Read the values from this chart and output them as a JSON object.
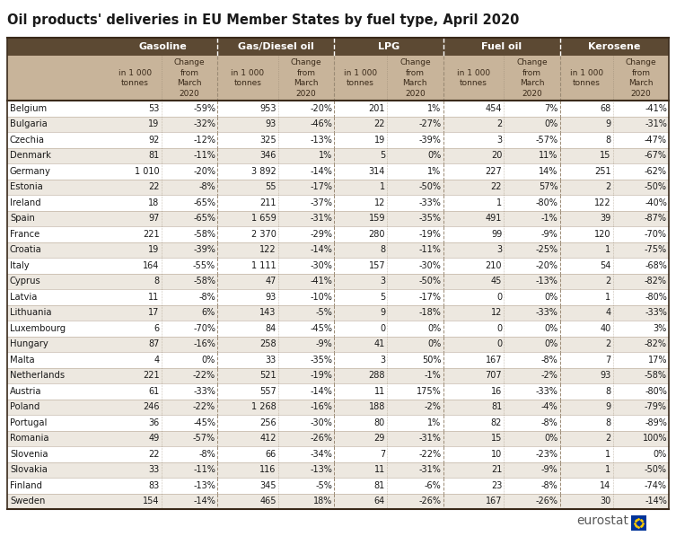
{
  "title": "Oil products' deliveries in EU Member States by fuel type, April 2020",
  "col_groups": [
    "Gasoline",
    "Gas/Diesel oil",
    "LPG",
    "Fuel oil",
    "Kerosene"
  ],
  "countries": [
    "Belgium",
    "Bulgaria",
    "Czechia",
    "Denmark",
    "Germany",
    "Estonia",
    "Ireland",
    "Spain",
    "France",
    "Croatia",
    "Italy",
    "Cyprus",
    "Latvia",
    "Lithuania",
    "Luxembourg",
    "Hungary",
    "Malta",
    "Netherlands",
    "Austria",
    "Poland",
    "Portugal",
    "Romania",
    "Slovenia",
    "Slovakia",
    "Finland",
    "Sweden"
  ],
  "data": {
    "Belgium": {
      "gas_v": "53",
      "gas_c": "-59%",
      "diesel_v": "953",
      "diesel_c": "-20%",
      "lpg_v": "201",
      "lpg_c": "1%",
      "fuel_v": "454",
      "fuel_c": "7%",
      "ker_v": "68",
      "ker_c": "-41%"
    },
    "Bulgaria": {
      "gas_v": "19",
      "gas_c": "-32%",
      "diesel_v": "93",
      "diesel_c": "-46%",
      "lpg_v": "22",
      "lpg_c": "-27%",
      "fuel_v": "2",
      "fuel_c": "0%",
      "ker_v": "9",
      "ker_c": "-31%"
    },
    "Czechia": {
      "gas_v": "92",
      "gas_c": "-12%",
      "diesel_v": "325",
      "diesel_c": "-13%",
      "lpg_v": "19",
      "lpg_c": "-39%",
      "fuel_v": "3",
      "fuel_c": "-57%",
      "ker_v": "8",
      "ker_c": "-47%"
    },
    "Denmark": {
      "gas_v": "81",
      "gas_c": "-11%",
      "diesel_v": "346",
      "diesel_c": "1%",
      "lpg_v": "5",
      "lpg_c": "0%",
      "fuel_v": "20",
      "fuel_c": "11%",
      "ker_v": "15",
      "ker_c": "-67%"
    },
    "Germany": {
      "gas_v": "1 010",
      "gas_c": "-20%",
      "diesel_v": "3 892",
      "diesel_c": "-14%",
      "lpg_v": "314",
      "lpg_c": "1%",
      "fuel_v": "227",
      "fuel_c": "14%",
      "ker_v": "251",
      "ker_c": "-62%"
    },
    "Estonia": {
      "gas_v": "22",
      "gas_c": "-8%",
      "diesel_v": "55",
      "diesel_c": "-17%",
      "lpg_v": "1",
      "lpg_c": "-50%",
      "fuel_v": "22",
      "fuel_c": "57%",
      "ker_v": "2",
      "ker_c": "-50%"
    },
    "Ireland": {
      "gas_v": "18",
      "gas_c": "-65%",
      "diesel_v": "211",
      "diesel_c": "-37%",
      "lpg_v": "12",
      "lpg_c": "-33%",
      "fuel_v": "1",
      "fuel_c": "-80%",
      "ker_v": "122",
      "ker_c": "-40%"
    },
    "Spain": {
      "gas_v": "97",
      "gas_c": "-65%",
      "diesel_v": "1 659",
      "diesel_c": "-31%",
      "lpg_v": "159",
      "lpg_c": "-35%",
      "fuel_v": "491",
      "fuel_c": "-1%",
      "ker_v": "39",
      "ker_c": "-87%"
    },
    "France": {
      "gas_v": "221",
      "gas_c": "-58%",
      "diesel_v": "2 370",
      "diesel_c": "-29%",
      "lpg_v": "280",
      "lpg_c": "-19%",
      "fuel_v": "99",
      "fuel_c": "-9%",
      "ker_v": "120",
      "ker_c": "-70%"
    },
    "Croatia": {
      "gas_v": "19",
      "gas_c": "-39%",
      "diesel_v": "122",
      "diesel_c": "-14%",
      "lpg_v": "8",
      "lpg_c": "-11%",
      "fuel_v": "3",
      "fuel_c": "-25%",
      "ker_v": "1",
      "ker_c": "-75%"
    },
    "Italy": {
      "gas_v": "164",
      "gas_c": "-55%",
      "diesel_v": "1 111",
      "diesel_c": "-30%",
      "lpg_v": "157",
      "lpg_c": "-30%",
      "fuel_v": "210",
      "fuel_c": "-20%",
      "ker_v": "54",
      "ker_c": "-68%"
    },
    "Cyprus": {
      "gas_v": "8",
      "gas_c": "-58%",
      "diesel_v": "47",
      "diesel_c": "-41%",
      "lpg_v": "3",
      "lpg_c": "-50%",
      "fuel_v": "45",
      "fuel_c": "-13%",
      "ker_v": "2",
      "ker_c": "-82%"
    },
    "Latvia": {
      "gas_v": "11",
      "gas_c": "-8%",
      "diesel_v": "93",
      "diesel_c": "-10%",
      "lpg_v": "5",
      "lpg_c": "-17%",
      "fuel_v": "0",
      "fuel_c": "0%",
      "ker_v": "1",
      "ker_c": "-80%"
    },
    "Lithuania": {
      "gas_v": "17",
      "gas_c": "6%",
      "diesel_v": "143",
      "diesel_c": "-5%",
      "lpg_v": "9",
      "lpg_c": "-18%",
      "fuel_v": "12",
      "fuel_c": "-33%",
      "ker_v": "4",
      "ker_c": "-33%"
    },
    "Luxembourg": {
      "gas_v": "6",
      "gas_c": "-70%",
      "diesel_v": "84",
      "diesel_c": "-45%",
      "lpg_v": "0",
      "lpg_c": "0%",
      "fuel_v": "0",
      "fuel_c": "0%",
      "ker_v": "40",
      "ker_c": "3%"
    },
    "Hungary": {
      "gas_v": "87",
      "gas_c": "-16%",
      "diesel_v": "258",
      "diesel_c": "-9%",
      "lpg_v": "41",
      "lpg_c": "0%",
      "fuel_v": "0",
      "fuel_c": "0%",
      "ker_v": "2",
      "ker_c": "-82%"
    },
    "Malta": {
      "gas_v": "4",
      "gas_c": "0%",
      "diesel_v": "33",
      "diesel_c": "-35%",
      "lpg_v": "3",
      "lpg_c": "50%",
      "fuel_v": "167",
      "fuel_c": "-8%",
      "ker_v": "7",
      "ker_c": "17%"
    },
    "Netherlands": {
      "gas_v": "221",
      "gas_c": "-22%",
      "diesel_v": "521",
      "diesel_c": "-19%",
      "lpg_v": "288",
      "lpg_c": "-1%",
      "fuel_v": "707",
      "fuel_c": "-2%",
      "ker_v": "93",
      "ker_c": "-58%"
    },
    "Austria": {
      "gas_v": "61",
      "gas_c": "-33%",
      "diesel_v": "557",
      "diesel_c": "-14%",
      "lpg_v": "11",
      "lpg_c": "175%",
      "fuel_v": "16",
      "fuel_c": "-33%",
      "ker_v": "8",
      "ker_c": "-80%"
    },
    "Poland": {
      "gas_v": "246",
      "gas_c": "-22%",
      "diesel_v": "1 268",
      "diesel_c": "-16%",
      "lpg_v": "188",
      "lpg_c": "-2%",
      "fuel_v": "81",
      "fuel_c": "-4%",
      "ker_v": "9",
      "ker_c": "-79%"
    },
    "Portugal": {
      "gas_v": "36",
      "gas_c": "-45%",
      "diesel_v": "256",
      "diesel_c": "-30%",
      "lpg_v": "80",
      "lpg_c": "1%",
      "fuel_v": "82",
      "fuel_c": "-8%",
      "ker_v": "8",
      "ker_c": "-89%"
    },
    "Romania": {
      "gas_v": "49",
      "gas_c": "-57%",
      "diesel_v": "412",
      "diesel_c": "-26%",
      "lpg_v": "29",
      "lpg_c": "-31%",
      "fuel_v": "15",
      "fuel_c": "0%",
      "ker_v": "2",
      "ker_c": "100%"
    },
    "Slovenia": {
      "gas_v": "22",
      "gas_c": "-8%",
      "diesel_v": "66",
      "diesel_c": "-34%",
      "lpg_v": "7",
      "lpg_c": "-22%",
      "fuel_v": "10",
      "fuel_c": "-23%",
      "ker_v": "1",
      "ker_c": "0%"
    },
    "Slovakia": {
      "gas_v": "33",
      "gas_c": "-11%",
      "diesel_v": "116",
      "diesel_c": "-13%",
      "lpg_v": "11",
      "lpg_c": "-31%",
      "fuel_v": "21",
      "fuel_c": "-9%",
      "ker_v": "1",
      "ker_c": "-50%"
    },
    "Finland": {
      "gas_v": "83",
      "gas_c": "-13%",
      "diesel_v": "345",
      "diesel_c": "-5%",
      "lpg_v": "81",
      "lpg_c": "-6%",
      "fuel_v": "23",
      "fuel_c": "-8%",
      "ker_v": "14",
      "ker_c": "-74%"
    },
    "Sweden": {
      "gas_v": "154",
      "gas_c": "-14%",
      "diesel_v": "465",
      "diesel_c": "18%",
      "lpg_v": "64",
      "lpg_c": "-26%",
      "fuel_v": "167",
      "fuel_c": "-26%",
      "ker_v": "30",
      "ker_c": "-14%"
    }
  },
  "header_dark_bg": "#5c4933",
  "header_light_bg": "#c8b49a",
  "divider_color": "#9b8b75",
  "row_bg_even": "#ffffff",
  "row_bg_odd": "#ede8e0",
  "border_color": "#3a2a1a",
  "text_dark": "#1a1a1a",
  "text_header": "#ffffff",
  "text_subheader": "#3a2a1a"
}
